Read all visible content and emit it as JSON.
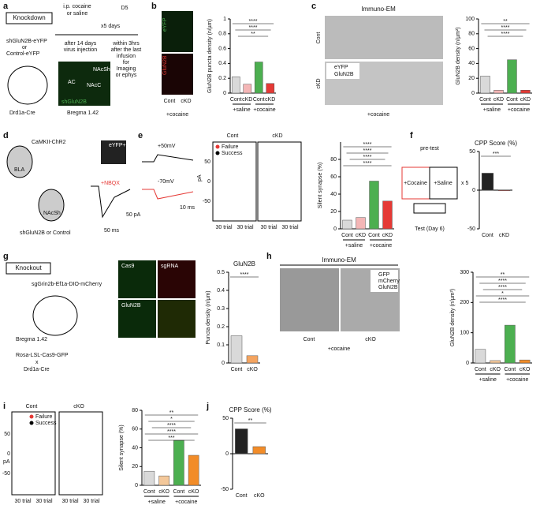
{
  "panels": {
    "a": {
      "label": "a",
      "box": "Knockdown",
      "treatment": [
        "i.p. cocaine",
        "or saline"
      ],
      "days": "x5 days",
      "day": "D5",
      "virus": [
        "shGluN2B-eYFP",
        "or",
        "Control-eYFP"
      ],
      "step1": [
        "after 14 days",
        "virus injection"
      ],
      "step2": [
        "within 3hrs",
        "after the last",
        "infusion",
        "for",
        "Imaging",
        "or ephys"
      ],
      "mouse": "Drd1a-Cre",
      "image": [
        "NAcSh",
        "AC",
        "NAcC",
        "shGluN2B"
      ],
      "bregma": "Bregma 1.42"
    },
    "b": {
      "label": "b",
      "channels": [
        "eYFP",
        "GluN2B"
      ],
      "cats": [
        "Cont",
        "cKD"
      ],
      "condition": "+cocaine"
    },
    "c": {
      "label": "c",
      "title": "Immuno-EM",
      "rows": [
        "Cont",
        "cKD"
      ],
      "legend": [
        "eYFP",
        "GluN2B"
      ],
      "condition": "+cocaine"
    },
    "d": {
      "label": "d",
      "virus1": "CaMKII-ChR2",
      "region1": "BLA",
      "region2": "NAcSh",
      "virus2": "shGluN2B or Control",
      "drug": "+NBQX",
      "cell": "eYFP+",
      "scale": [
        "50 pA",
        "50 ms"
      ]
    },
    "e": {
      "label": "e",
      "holding": [
        "+50mV",
        "-70mV"
      ],
      "scale": "10 ms",
      "plots": [
        "Cont",
        "cKD"
      ],
      "legend": [
        "Failure",
        "Success"
      ],
      "yaxis": "pA",
      "yticks": [
        "50",
        "0",
        "-50"
      ],
      "xlabels": [
        "30 trial",
        "30 trial",
        "30 trial",
        "30 trial"
      ]
    },
    "f": {
      "label": "f",
      "pretest": "pre-test",
      "box1": "+Cocaine",
      "box2": "+Saline",
      "times": "x 5",
      "test": "Test (Day 6)"
    },
    "g": {
      "label": "g",
      "box": "Knockout",
      "virus": "sgGrin2b-Ef1a-DIO-mCherry",
      "bregma": "Bregma 1.42",
      "mouse": [
        "Rosa-LSL-Cas9-GFP",
        "x",
        "Drd1a-Cre"
      ],
      "channels": [
        "Cas9",
        "sgRNA",
        "GluN2B"
      ]
    },
    "h": {
      "label": "h",
      "title": "Immuno-EM",
      "legend": [
        "GFP",
        "mCherry",
        "GluN2B"
      ],
      "cats": [
        "Cont",
        "cKO"
      ],
      "condition": "+cocaine"
    },
    "i": {
      "label": "i",
      "plots": [
        "Cont",
        "cKO"
      ],
      "legend": [
        "Failure",
        "Success"
      ],
      "yaxis": "pA",
      "yticks": [
        "50",
        "0",
        "-50"
      ],
      "xlabels": [
        "30 trial",
        "30 trial",
        "30 trial",
        "30 trial"
      ]
    },
    "j": {
      "label": "j"
    }
  },
  "chart_data": [
    {
      "type": "bar",
      "ylabel": "GluN2B puncta density (n/µm)",
      "categories": [
        "Cont",
        "cKD",
        "Cont",
        "cKD"
      ],
      "groups": [
        "+saline",
        "+cocaine"
      ],
      "values": [
        0.22,
        0.12,
        0.42,
        0.13
      ],
      "colors": [
        "#d9d9d9",
        "#f4b6b6",
        "#4caf50",
        "#e53935"
      ],
      "ylim": [
        0,
        1
      ],
      "yticks": [
        0,
        0.2,
        0.4,
        0.6,
        0.8,
        1
      ],
      "annotations": [
        "****",
        "****",
        "**"
      ]
    },
    {
      "type": "bar",
      "ylabel": "GluN2B density (n/µm²)",
      "categories": [
        "Cont",
        "cKD",
        "Cont",
        "cKD"
      ],
      "groups": [
        "+saline",
        "+cocaine"
      ],
      "values": [
        23,
        4,
        45,
        4
      ],
      "colors": [
        "#d9d9d9",
        "#f4b6b6",
        "#4caf50",
        "#e53935"
      ],
      "ylim": [
        0,
        100
      ],
      "yticks": [
        0,
        20,
        40,
        60,
        80,
        100
      ],
      "annotations": [
        "**",
        "****",
        "****"
      ]
    },
    {
      "type": "bar",
      "ylabel": "Silent synapse (%)",
      "categories": [
        "Cont",
        "cKD",
        "Cont",
        "cKD"
      ],
      "groups": [
        "+saline",
        "+cocaine"
      ],
      "values": [
        10,
        13,
        55,
        32
      ],
      "colors": [
        "#d9d9d9",
        "#f4b6b6",
        "#4caf50",
        "#e53935"
      ],
      "ylim": [
        0,
        100
      ],
      "yticks": [
        0,
        20,
        40,
        60,
        80
      ],
      "annotations": [
        "****",
        "****",
        "****",
        "****"
      ]
    },
    {
      "type": "bar",
      "title": "CPP Score (%)",
      "categories": [
        "Cont",
        "cKD"
      ],
      "values": [
        22,
        0
      ],
      "colors": [
        "#222222",
        "#e53935"
      ],
      "ylim": [
        -50,
        50
      ],
      "yticks": [
        -50,
        0,
        50
      ],
      "annotations": [
        "***"
      ]
    },
    {
      "type": "bar",
      "title": "GluN2B",
      "ylabel": "Puncta density (n/µm)",
      "categories": [
        "Cont",
        "cKO"
      ],
      "values": [
        0.15,
        0.04
      ],
      "colors": [
        "#d9d9d9",
        "#f4a460"
      ],
      "ylim": [
        0,
        0.5
      ],
      "yticks": [
        0,
        0.1,
        0.2,
        0.3,
        0.4,
        0.5
      ],
      "annotations": [
        "****"
      ]
    },
    {
      "type": "bar",
      "ylabel": "GluN2B density (n/µm²)",
      "categories": [
        "Cont",
        "cKO",
        "Cont",
        "cKO"
      ],
      "groups": [
        "+saline",
        "+cocaine"
      ],
      "values": [
        45,
        8,
        125,
        10
      ],
      "colors": [
        "#d9d9d9",
        "#f4c89a",
        "#4caf50",
        "#f28c28"
      ],
      "ylim": [
        0,
        300
      ],
      "yticks": [
        0,
        100,
        200,
        300
      ],
      "annotations": [
        "**",
        "****",
        "****",
        "*",
        "****"
      ]
    },
    {
      "type": "bar",
      "ylabel": "Silent synapse (%)",
      "categories": [
        "Cont",
        "cKO",
        "Cont",
        "cKO"
      ],
      "groups": [
        "+saline",
        "+cocaine"
      ],
      "values": [
        15,
        10,
        48,
        32
      ],
      "colors": [
        "#d9d9d9",
        "#f4c89a",
        "#4caf50",
        "#f28c28"
      ],
      "ylim": [
        0,
        80
      ],
      "yticks": [
        0,
        20,
        40,
        60,
        80
      ],
      "annotations": [
        "**",
        "*",
        "****",
        "****",
        "***"
      ]
    },
    {
      "type": "bar",
      "title": "CPP Score (%)",
      "categories": [
        "Cont",
        "cKO"
      ],
      "values": [
        35,
        10
      ],
      "colors": [
        "#222222",
        "#f28c28"
      ],
      "ylim": [
        -50,
        50
      ],
      "yticks": [
        -50,
        0,
        50
      ],
      "annotations": [
        "**"
      ]
    }
  ]
}
